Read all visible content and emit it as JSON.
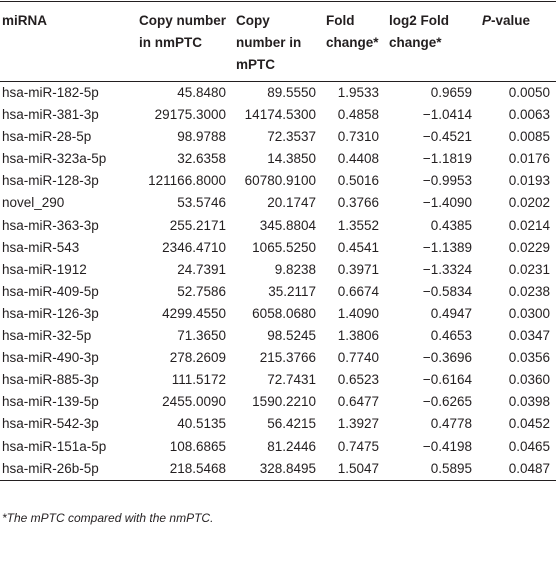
{
  "table": {
    "headers": [
      "miRNA",
      "Copy number in nmPTC",
      "Copy number in mPTC",
      "Fold change*",
      "log2 Fold change*",
      {
        "italic": "P",
        "rest": "-value"
      }
    ],
    "rows": [
      [
        "hsa-miR-182-5p",
        "45.8480",
        "89.5550",
        "1.9533",
        "0.9659",
        "0.0050"
      ],
      [
        "hsa-miR-381-3p",
        "29175.3000",
        "14174.5300",
        "0.4858",
        "−1.0414",
        "0.0063"
      ],
      [
        "hsa-miR-28-5p",
        "98.9788",
        "72.3537",
        "0.7310",
        "−0.4521",
        "0.0085"
      ],
      [
        "hsa-miR-323a-5p",
        "32.6358",
        "14.3850",
        "0.4408",
        "−1.1819",
        "0.0176"
      ],
      [
        "hsa-miR-128-3p",
        "121166.8000",
        "60780.9100",
        "0.5016",
        "−0.9953",
        "0.0193"
      ],
      [
        "novel_290",
        "53.5746",
        "20.1747",
        "0.3766",
        "−1.4090",
        "0.0202"
      ],
      [
        "hsa-miR-363-3p",
        "255.2171",
        "345.8804",
        "1.3552",
        "0.4385",
        "0.0214"
      ],
      [
        "hsa-miR-543",
        "2346.4710",
        "1065.5250",
        "0.4541",
        "−1.1389",
        "0.0229"
      ],
      [
        "hsa-miR-1912",
        "24.7391",
        "9.8238",
        "0.3971",
        "−1.3324",
        "0.0231"
      ],
      [
        "hsa-miR-409-5p",
        "52.7586",
        "35.2117",
        "0.6674",
        "−0.5834",
        "0.0238"
      ],
      [
        "hsa-miR-126-3p",
        "4299.4550",
        "6058.0680",
        "1.4090",
        "0.4947",
        "0.0300"
      ],
      [
        "hsa-miR-32-5p",
        "71.3650",
        "98.5245",
        "1.3806",
        "0.4653",
        "0.0347"
      ],
      [
        "hsa-miR-490-3p",
        "278.2609",
        "215.3766",
        "0.7740",
        "−0.3696",
        "0.0356"
      ],
      [
        "hsa-miR-885-3p",
        "111.5172",
        "72.7431",
        "0.6523",
        "−0.6164",
        "0.0360"
      ],
      [
        "hsa-miR-139-5p",
        "2455.0090",
        "1590.2210",
        "0.6477",
        "−0.6265",
        "0.0398"
      ],
      [
        "hsa-miR-542-3p",
        "40.5135",
        "56.4215",
        "1.3927",
        "0.4778",
        "0.0452"
      ],
      [
        "hsa-miR-151a-5p",
        "108.6865",
        "81.2446",
        "0.7475",
        "−0.4198",
        "0.0465"
      ],
      [
        "hsa-miR-26b-5p",
        "218.5468",
        "328.8495",
        "1.5047",
        "0.5895",
        "0.0487"
      ]
    ],
    "footnote": "*The mPTC compared with the nmPTC."
  }
}
